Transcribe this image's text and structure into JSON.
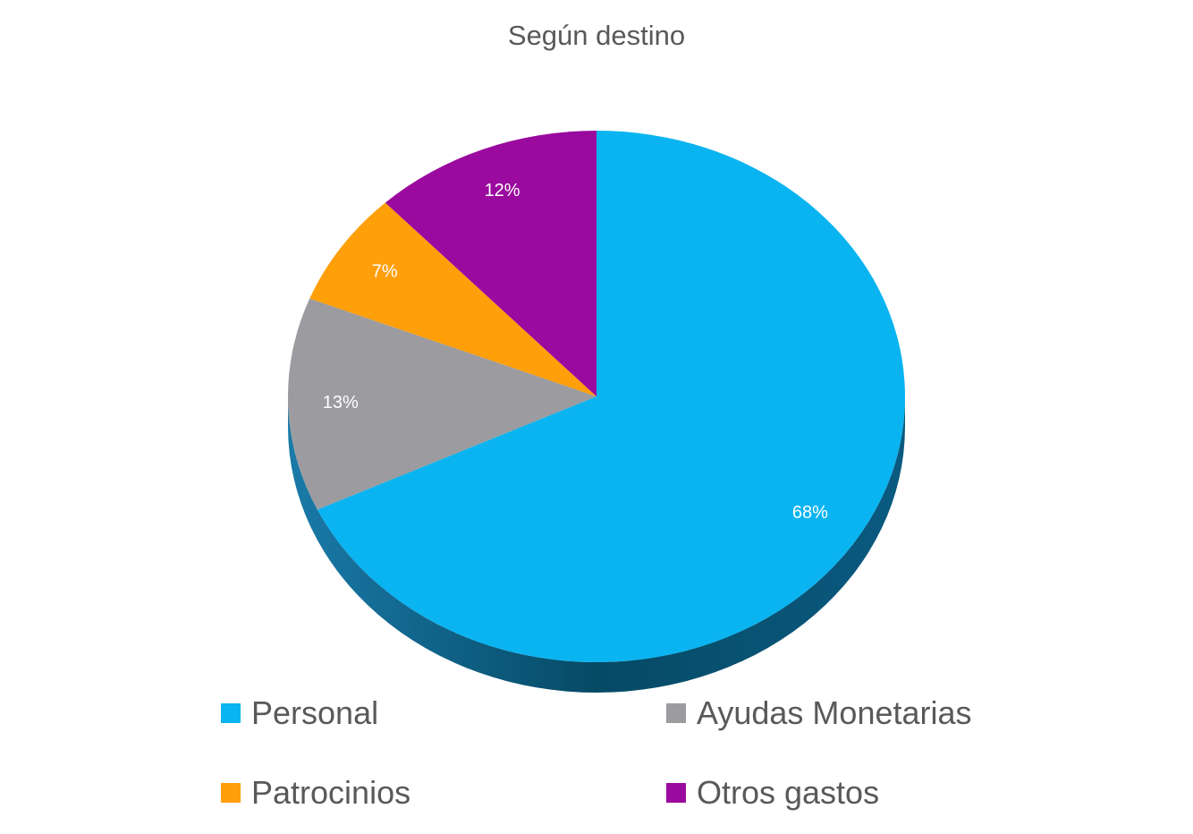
{
  "chart_data": {
    "type": "pie",
    "title": "Según destino",
    "slices": [
      {
        "name": "Personal",
        "value": 68,
        "label": "68%",
        "color": "#0AB4F0"
      },
      {
        "name": "Ayudas Monetarias",
        "value": 13,
        "label": "13%",
        "color": "#9B9BA0"
      },
      {
        "name": "Patrocinios",
        "value": 7,
        "label": "7%",
        "color": "#FF9F0A"
      },
      {
        "name": "Otros gastos",
        "value": 12,
        "label": "12%",
        "color": "#9A0A9E"
      }
    ],
    "legend_position": "bottom",
    "style": "3d-tilted"
  }
}
